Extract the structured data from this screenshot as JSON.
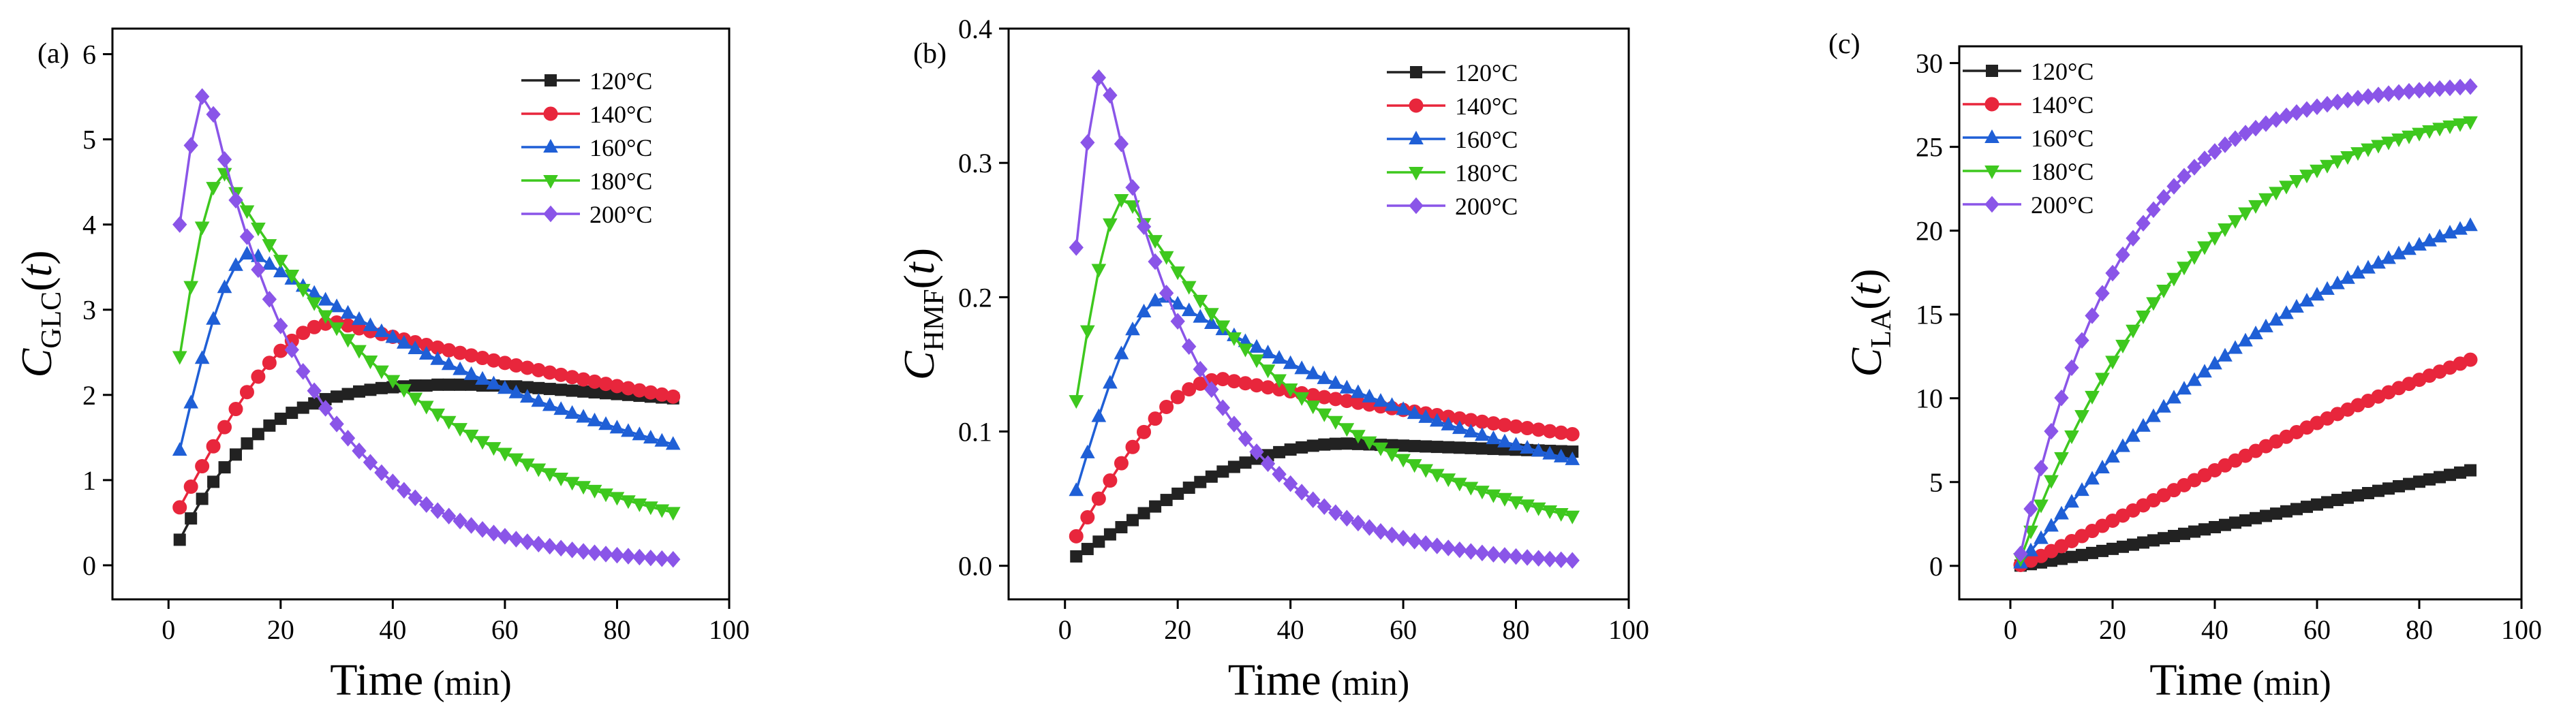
{
  "chart_data": [
    {
      "type": "line",
      "panel_label": "(a)",
      "xlabel_main": "Time",
      "xlabel_unit": "(min)",
      "ylabel_main": "C",
      "ylabel_sub": "GLC",
      "ylabel_arg": "t",
      "xlim": [
        -10,
        100
      ],
      "ylim": [
        -0.4,
        6.3
      ],
      "xticks": [
        0,
        20,
        40,
        60,
        80,
        100
      ],
      "yticks": [
        0,
        1,
        2,
        3,
        4,
        5,
        6
      ],
      "legend_position": "top-right",
      "series": [
        {
          "name": "120°C",
          "color": "#222222",
          "marker": "square",
          "kind": "rise",
          "x": [
            2,
            4,
            6,
            8,
            10,
            12,
            14,
            16,
            18,
            20,
            22,
            24,
            26,
            28,
            30,
            32,
            34,
            36,
            38,
            40,
            42,
            44,
            46,
            48,
            50,
            52,
            54,
            56,
            58,
            60,
            62,
            64,
            66,
            68,
            70,
            72,
            74,
            76,
            78,
            80,
            82,
            84,
            86,
            88,
            90
          ],
          "y": [
            0.3,
            0.55,
            0.78,
            0.98,
            1.15,
            1.3,
            1.43,
            1.54,
            1.64,
            1.72,
            1.79,
            1.85,
            1.9,
            1.95,
            1.98,
            2.01,
            2.04,
            2.06,
            2.08,
            2.09,
            2.1,
            2.11,
            2.11,
            2.12,
            2.12,
            2.12,
            2.12,
            2.11,
            2.11,
            2.1,
            2.1,
            2.09,
            2.08,
            2.07,
            2.06,
            2.05,
            2.04,
            2.03,
            2.02,
            2.01,
            2.0,
            1.99,
            1.98,
            1.97,
            1.96
          ]
        },
        {
          "name": "140°C",
          "color": "#e8263c",
          "marker": "circle",
          "kind": "peak",
          "peak_x": 30,
          "peak_y": 2.85,
          "start_y": 0.68,
          "end_y": 1.98
        },
        {
          "name": "160°C",
          "color": "#1f5fd6",
          "marker": "triangle-up",
          "kind": "peak",
          "peak_x": 15,
          "peak_y": 3.67,
          "start_y": 1.35,
          "end_y": 1.42
        },
        {
          "name": "180°C",
          "color": "#3ec81e",
          "marker": "triangle-down",
          "kind": "peak",
          "peak_x": 10,
          "peak_y": 4.6,
          "start_y": 2.45,
          "end_y": 0.62
        },
        {
          "name": "200°C",
          "color": "#8a55e8",
          "marker": "diamond",
          "kind": "peak",
          "peak_x": 7,
          "peak_y": 5.58,
          "start_y": 4.0,
          "end_y": 0.07
        }
      ]
    },
    {
      "type": "line",
      "panel_label": "(b)",
      "xlabel_main": "Time",
      "xlabel_unit": "(min)",
      "ylabel_main": "C",
      "ylabel_sub": "HMF",
      "ylabel_arg": "t",
      "xlim": [
        -10,
        100
      ],
      "ylim": [
        -0.025,
        0.4
      ],
      "xticks": [
        0,
        20,
        40,
        60,
        80,
        100
      ],
      "yticks": [
        0.0,
        0.1,
        0.2,
        0.3,
        0.4
      ],
      "legend_position": "top-right",
      "series": [
        {
          "name": "120°C",
          "color": "#222222",
          "marker": "square",
          "kind": "peak",
          "peak_x": 50,
          "peak_y": 0.091,
          "start_y": 0.007,
          "end_y": 0.085
        },
        {
          "name": "140°C",
          "color": "#e8263c",
          "marker": "circle",
          "kind": "peak",
          "peak_x": 28,
          "peak_y": 0.139,
          "start_y": 0.022,
          "end_y": 0.098
        },
        {
          "name": "160°C",
          "color": "#1f5fd6",
          "marker": "triangle-up",
          "kind": "peak",
          "peak_x": 18,
          "peak_y": 0.2,
          "start_y": 0.056,
          "end_y": 0.079
        },
        {
          "name": "180°C",
          "color": "#3ec81e",
          "marker": "triangle-down",
          "kind": "peak",
          "peak_x": 11,
          "peak_y": 0.275,
          "start_y": 0.123,
          "end_y": 0.037
        },
        {
          "name": "200°C",
          "color": "#8a55e8",
          "marker": "diamond",
          "kind": "peak",
          "peak_x": 7,
          "peak_y": 0.37,
          "start_y": 0.237,
          "end_y": 0.004
        }
      ]
    },
    {
      "type": "line",
      "panel_label": "(c)",
      "xlabel_main": "Time",
      "xlabel_unit": "(min)",
      "ylabel_main": "C",
      "ylabel_sub": "LA",
      "ylabel_arg": "t",
      "xlim": [
        -10,
        100
      ],
      "ylim": [
        -2,
        31
      ],
      "xticks": [
        0,
        20,
        40,
        60,
        80,
        100
      ],
      "yticks": [
        0,
        5,
        10,
        15,
        20,
        25,
        30
      ],
      "legend_position": "top-left",
      "series": [
        {
          "name": "120°C",
          "color": "#222222",
          "marker": "square",
          "kind": "grow",
          "end_y": 5.7,
          "tau": 400,
          "shape": 1.15
        },
        {
          "name": "140°C",
          "color": "#e8263c",
          "marker": "circle",
          "kind": "grow",
          "end_y": 12.3,
          "tau": 160,
          "shape": 1.1
        },
        {
          "name": "160°C",
          "color": "#1f5fd6",
          "marker": "triangle-up",
          "kind": "grow",
          "end_y": 20.3,
          "tau": 62,
          "shape": 1.05
        },
        {
          "name": "180°C",
          "color": "#3ec81e",
          "marker": "triangle-down",
          "kind": "grow",
          "end_y": 26.5,
          "tau": 33,
          "shape": 1.0
        },
        {
          "name": "200°C",
          "color": "#8a55e8",
          "marker": "diamond",
          "kind": "grow",
          "end_y": 28.6,
          "tau": 20,
          "shape": 1.0
        }
      ]
    }
  ]
}
